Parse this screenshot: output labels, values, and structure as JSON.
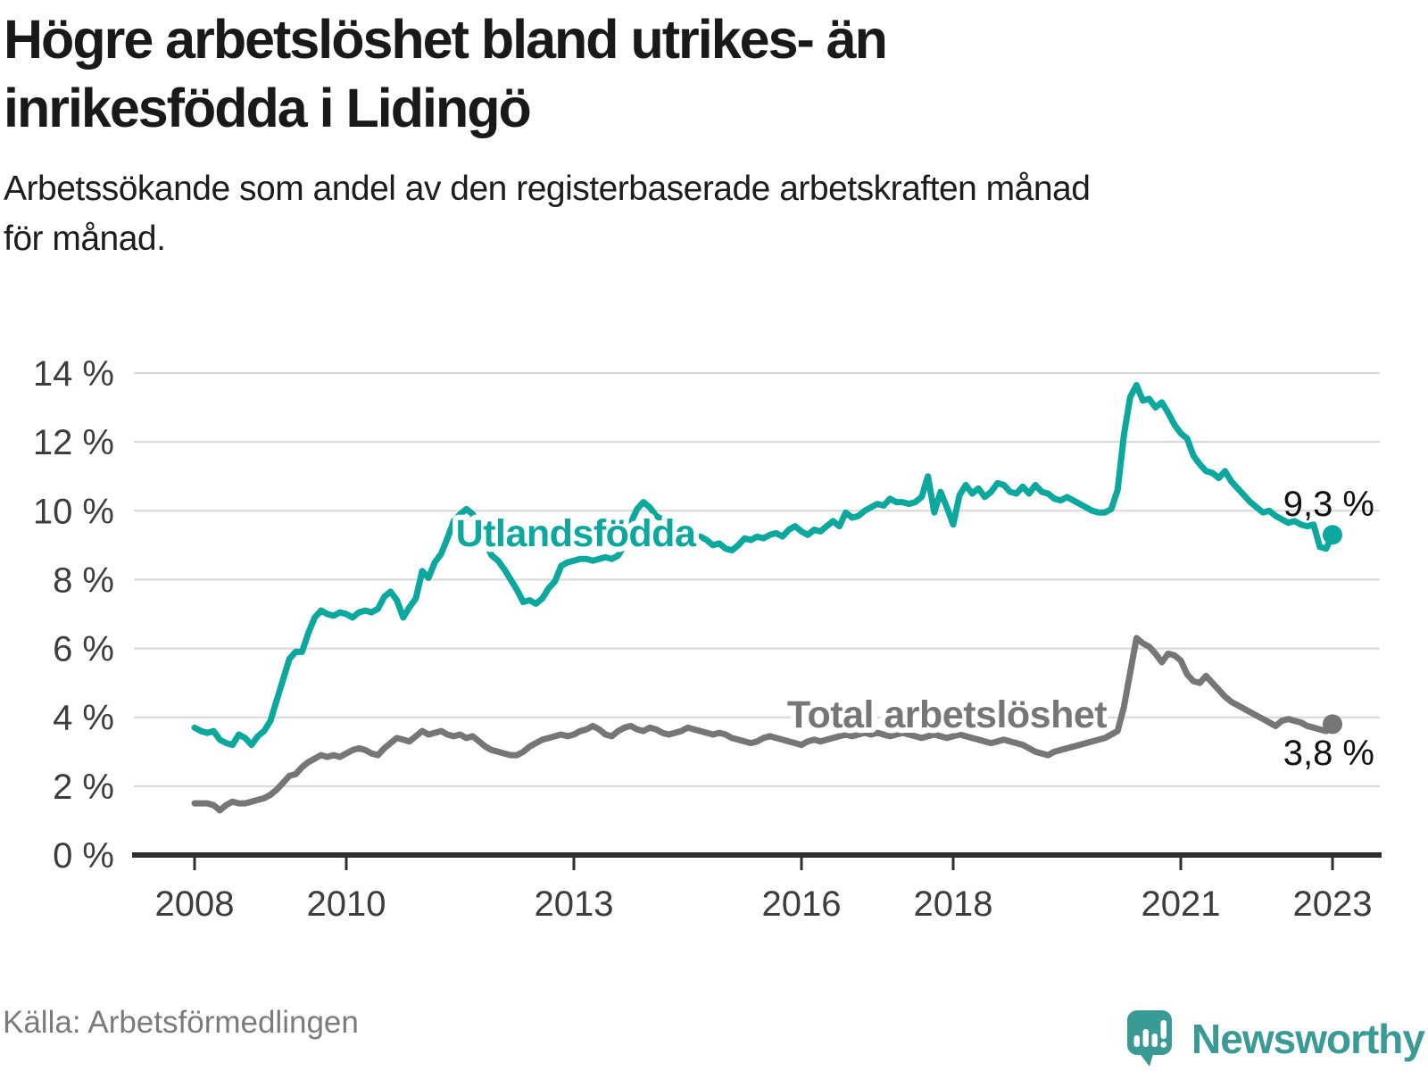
{
  "header": {
    "title": "Högre arbetslöshet bland utrikes- än\ninrikesfödda i Lidingö",
    "subtitle": "Arbetssökande som andel av den registerbaserade arbetskraften månad\nför månad."
  },
  "footer": {
    "source": "Källa: Arbetsförmedlingen",
    "brand": "Newsworthy"
  },
  "colors": {
    "teal_line": "#0ca89e",
    "gray_line": "#767676",
    "title_text": "#191919",
    "axis_text": "#3d3d3d",
    "gridline": "#d7d7d7",
    "axis_line": "#2d2d2d",
    "source_text": "#7b7b7b",
    "brand_teal": "#3a9a96",
    "value_label_text": "#111111",
    "background": "#ffffff"
  },
  "chart_data": {
    "type": "line",
    "title": "Högre arbetslöshet bland utrikes- än inrikesfödda i Lidingö",
    "subtitle": "Arbetssökande som andel av den registerbaserade arbetskraften månad för månad.",
    "source": "Källa: Arbetsförmedlingen",
    "unit": "%",
    "frequency": "monthly",
    "start": "2008-01",
    "end": "2023-01",
    "start_year": 2008,
    "ylim": [
      0,
      14
    ],
    "grid": "horizontal",
    "legend_position": "inline-labels",
    "y_ticks": [
      {
        "value": 0,
        "label": "0 %"
      },
      {
        "value": 2,
        "label": "2 %"
      },
      {
        "value": 4,
        "label": "4 %"
      },
      {
        "value": 6,
        "label": "6 %"
      },
      {
        "value": 8,
        "label": "8 %"
      },
      {
        "value": 10,
        "label": "10 %"
      },
      {
        "value": 12,
        "label": "12 %"
      },
      {
        "value": 14,
        "label": "14 %"
      }
    ],
    "x_ticks": [
      {
        "year": 2008,
        "label": "2008"
      },
      {
        "year": 2010,
        "label": "2010"
      },
      {
        "year": 2013,
        "label": "2013"
      },
      {
        "year": 2016,
        "label": "2016"
      },
      {
        "year": 2018,
        "label": "2018"
      },
      {
        "year": 2021,
        "label": "2021"
      },
      {
        "year": 2023,
        "label": "2023"
      }
    ],
    "series": [
      {
        "name": "Utlandsfödda",
        "color": "#0ca89e",
        "end_label": "9,3 %",
        "end_value": 9.3,
        "values": [
          3.7,
          3.6,
          3.55,
          3.6,
          3.35,
          3.25,
          3.2,
          3.5,
          3.4,
          3.2,
          3.45,
          3.6,
          3.9,
          4.5,
          5.1,
          5.7,
          5.9,
          5.9,
          6.45,
          6.9,
          7.1,
          7.0,
          6.95,
          7.05,
          7.0,
          6.9,
          7.05,
          7.1,
          7.05,
          7.15,
          7.5,
          7.65,
          7.4,
          6.9,
          7.2,
          7.45,
          8.25,
          8.05,
          8.5,
          8.75,
          9.2,
          9.7,
          9.9,
          10.05,
          9.9,
          9.5,
          9.1,
          8.7,
          8.55,
          8.3,
          8.0,
          7.7,
          7.35,
          7.4,
          7.3,
          7.45,
          7.75,
          7.95,
          8.4,
          8.5,
          8.55,
          8.6,
          8.6,
          8.55,
          8.6,
          8.65,
          8.6,
          8.7,
          9.0,
          9.65,
          10.05,
          10.25,
          10.1,
          9.85,
          9.75,
          9.6,
          9.45,
          9.3,
          9.2,
          9.2,
          9.25,
          9.15,
          9.0,
          9.05,
          8.9,
          8.85,
          9.0,
          9.2,
          9.15,
          9.25,
          9.2,
          9.3,
          9.35,
          9.25,
          9.45,
          9.55,
          9.4,
          9.3,
          9.45,
          9.4,
          9.55,
          9.7,
          9.55,
          9.95,
          9.8,
          9.85,
          10.0,
          10.1,
          10.2,
          10.15,
          10.35,
          10.25,
          10.25,
          10.2,
          10.25,
          10.4,
          11.0,
          9.95,
          10.55,
          10.1,
          9.6,
          10.45,
          10.75,
          10.5,
          10.65,
          10.4,
          10.55,
          10.8,
          10.75,
          10.55,
          10.5,
          10.7,
          10.5,
          10.75,
          10.55,
          10.5,
          10.35,
          10.3,
          10.4,
          10.3,
          10.2,
          10.1,
          10.0,
          9.95,
          9.95,
          10.05,
          10.6,
          12.2,
          13.3,
          13.65,
          13.2,
          13.25,
          13.0,
          13.15,
          12.85,
          12.5,
          12.25,
          12.1,
          11.6,
          11.35,
          11.15,
          11.1,
          10.95,
          11.15,
          10.85,
          10.65,
          10.45,
          10.25,
          10.1,
          9.95,
          10.0,
          9.85,
          9.75,
          9.65,
          9.7,
          9.6,
          9.55,
          9.6,
          8.95,
          8.9,
          9.3
        ]
      },
      {
        "name": "Total arbetslöshet",
        "color": "#767676",
        "end_label": "3,8 %",
        "end_value": 3.8,
        "values": [
          1.5,
          1.5,
          1.5,
          1.45,
          1.3,
          1.45,
          1.55,
          1.5,
          1.5,
          1.55,
          1.6,
          1.65,
          1.75,
          1.9,
          2.1,
          2.3,
          2.35,
          2.55,
          2.7,
          2.8,
          2.9,
          2.85,
          2.9,
          2.85,
          2.95,
          3.05,
          3.1,
          3.05,
          2.95,
          2.9,
          3.1,
          3.25,
          3.4,
          3.35,
          3.3,
          3.45,
          3.6,
          3.5,
          3.55,
          3.6,
          3.5,
          3.45,
          3.5,
          3.4,
          3.45,
          3.3,
          3.15,
          3.05,
          3.0,
          2.95,
          2.9,
          2.9,
          3.0,
          3.15,
          3.25,
          3.35,
          3.4,
          3.45,
          3.5,
          3.45,
          3.5,
          3.6,
          3.65,
          3.75,
          3.65,
          3.5,
          3.45,
          3.6,
          3.7,
          3.75,
          3.65,
          3.6,
          3.7,
          3.65,
          3.55,
          3.5,
          3.55,
          3.6,
          3.7,
          3.65,
          3.6,
          3.55,
          3.5,
          3.55,
          3.5,
          3.4,
          3.35,
          3.3,
          3.25,
          3.3,
          3.4,
          3.45,
          3.4,
          3.35,
          3.3,
          3.25,
          3.2,
          3.3,
          3.35,
          3.3,
          3.35,
          3.4,
          3.45,
          3.5,
          3.45,
          3.5,
          3.55,
          3.5,
          3.55,
          3.5,
          3.45,
          3.5,
          3.55,
          3.5,
          3.45,
          3.4,
          3.45,
          3.5,
          3.45,
          3.4,
          3.45,
          3.5,
          3.45,
          3.4,
          3.35,
          3.3,
          3.25,
          3.3,
          3.35,
          3.3,
          3.25,
          3.2,
          3.1,
          3.0,
          2.95,
          2.9,
          3.0,
          3.05,
          3.1,
          3.15,
          3.2,
          3.25,
          3.3,
          3.35,
          3.4,
          3.5,
          3.6,
          4.3,
          5.3,
          6.3,
          6.15,
          6.05,
          5.85,
          5.6,
          5.85,
          5.8,
          5.65,
          5.25,
          5.05,
          5.0,
          5.2,
          5.0,
          4.8,
          4.6,
          4.45,
          4.35,
          4.25,
          4.15,
          4.05,
          3.95,
          3.85,
          3.75,
          3.9,
          3.95,
          3.9,
          3.85,
          3.75,
          3.7,
          3.65,
          3.6,
          3.8
        ]
      }
    ]
  }
}
